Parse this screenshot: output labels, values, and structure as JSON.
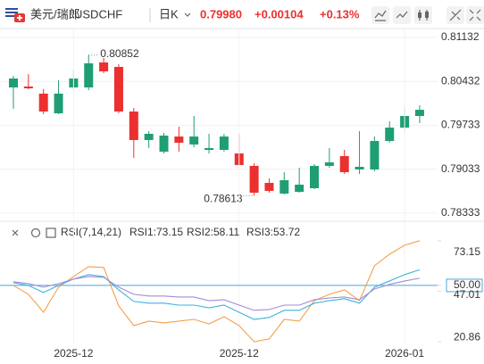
{
  "header": {
    "name": "美元/瑞郎",
    "symbol": "USDCHF",
    "period": "日K",
    "price": "0.79980",
    "change": "+0.00104",
    "change_pct": "+0.13%"
  },
  "chart_data": [
    {
      "type": "candlestick",
      "open": [
        0.80336,
        0.8035,
        0.80237,
        0.79924,
        0.80336,
        0.80336,
        0.80734,
        0.80663,
        0.79952,
        0.79498,
        0.79313,
        0.79554,
        0.79427,
        0.79341,
        0.79341,
        0.79284,
        0.79086,
        0.78815,
        0.78645,
        0.78673,
        0.7873,
        0.79086,
        0.79242,
        0.79029,
        0.79029,
        0.79483,
        0.79696,
        0.79881
      ],
      "high": [
        0.80521,
        0.80549,
        0.80308,
        0.8045,
        0.8062,
        0.80852,
        0.80805,
        0.80706,
        0.80009,
        0.7964,
        0.79611,
        0.79711,
        0.79881,
        0.79597,
        0.79597,
        0.79597,
        0.79128,
        0.78886,
        0.78986,
        0.79057,
        0.79114,
        0.7937,
        0.79341,
        0.7964,
        0.79554,
        0.79796,
        0.80023,
        0.80052
      ],
      "low": [
        0.79995,
        0.80308,
        0.7991,
        0.7991,
        0.80293,
        0.80293,
        0.80564,
        0.79924,
        0.79213,
        0.7937,
        0.79284,
        0.79313,
        0.79384,
        0.79284,
        0.79313,
        0.791,
        0.78613,
        0.78659,
        0.7863,
        0.78659,
        0.78716,
        0.79057,
        0.78957,
        0.78957,
        0.79001,
        0.79455,
        0.79625,
        0.79767
      ],
      "close": [
        0.80478,
        0.80322,
        0.79952,
        0.80237,
        0.80478,
        0.8072,
        0.80592,
        0.79952,
        0.79498,
        0.79597,
        0.79569,
        0.79455,
        0.79554,
        0.7937,
        0.79554,
        0.791,
        0.78659,
        0.78688,
        0.78858,
        0.78787,
        0.79086,
        0.79142,
        0.78986,
        0.79071,
        0.79483,
        0.79696,
        0.79881,
        0.7998
      ],
      "up_color": "#1f9e73",
      "down_color": "#ec2f2f",
      "ylim": [
        0.78204,
        0.81274
      ],
      "yticks": [
        0.81132,
        0.80432,
        0.79733,
        0.79033,
        0.78333
      ],
      "ytick_colors": [
        "#ec2f2f",
        "#ec2f2f",
        "#1f9e73",
        "#1f9e73",
        "#1f9e73"
      ],
      "grid": true
    },
    {
      "type": "line",
      "title": "RSI(7,14,21)",
      "series": [
        {
          "name": "RSI1:73.15",
          "color": "#f5a04a",
          "values": [
            50.0,
            45.4,
            36.1,
            49.1,
            54.6,
            59.7,
            59.3,
            39.4,
            29.2,
            31.5,
            30.6,
            31.5,
            32.4,
            30.1,
            33.8,
            29.2,
            20.86,
            22.3,
            32.4,
            31.5,
            42.1,
            45.4,
            47.7,
            42.1,
            60.2,
            66.2,
            70.8,
            73.15
          ]
        },
        {
          "name": "RSI2:58.11",
          "color": "#3db4dc",
          "values": [
            51.4,
            50.0,
            46.3,
            50.0,
            53.3,
            55.6,
            54.6,
            47.7,
            41.7,
            40.8,
            40.8,
            39.8,
            39.8,
            38.4,
            39.8,
            36.1,
            32.4,
            33.4,
            37.1,
            37.1,
            40.8,
            42.1,
            43.1,
            40.8,
            49.1,
            52.3,
            55.6,
            58.11
          ]
        },
        {
          "name": "RSI3:53.72",
          "color": "#a58ad8",
          "values": [
            51.9,
            50.9,
            49.1,
            50.9,
            53.3,
            54.6,
            54.2,
            49.1,
            45.4,
            44.5,
            44.5,
            44.0,
            44.0,
            42.1,
            42.6,
            39.8,
            37.1,
            37.5,
            39.8,
            39.8,
            42.6,
            43.5,
            44.0,
            42.6,
            48.2,
            50.5,
            52.3,
            53.72
          ]
        }
      ],
      "ylim": [
        16,
        80
      ],
      "yticks": [
        73.15,
        {
          "value": 50,
          "label": "50.00"
        },
        47.01,
        20.86
      ],
      "reference": 50,
      "reference_color": "#4aa8d8",
      "x_labels": [
        {
          "index": 4,
          "label": "2025-12"
        },
        {
          "index": 15,
          "label": "2025-12"
        },
        {
          "index": 26,
          "label": "2026-01"
        }
      ]
    }
  ]
}
